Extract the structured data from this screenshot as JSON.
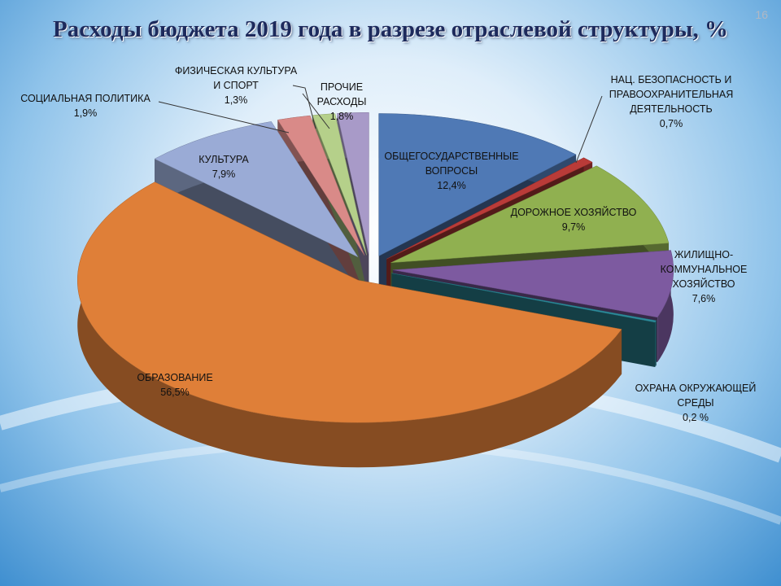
{
  "chart_data": {
    "type": "pie",
    "title": "Расходы бюджета 2019 года в разрезе отраслевой структуры, %",
    "slide_number": "16",
    "categories": [
      "ОБЩЕГОСУДАРСТВЕННЫЕ ВОПРОСЫ",
      "НАЦ. БЕЗОПАСНОСТЬ И ПРАВООХРАНИТЕЛЬНАЯ ДЕЯТЕЛЬНОСТЬ",
      "ДОРОЖНОЕ ХОЗЯЙСТВО",
      "ЖИЛИЩНО-КОММУНАЛЬНОЕ ХОЗЯЙСТВО",
      "ОХРАНА ОКРУЖАЮЩЕЙ СРЕДЫ",
      "ОБРАЗОВАНИЕ",
      "КУЛЬТУРА",
      "СОЦИАЛЬНАЯ ПОЛИТИКА",
      "ФИЗИЧЕСКАЯ КУЛЬТУРА И СПОРТ",
      "ПРОЧИЕ РАСХОДЫ"
    ],
    "values": [
      12.4,
      0.7,
      9.7,
      7.6,
      0.2,
      56.5,
      7.9,
      1.9,
      1.3,
      1.8
    ],
    "value_labels": [
      "12,4%",
      "0,7%",
      "9,7%",
      "7,6%",
      "0,2 %",
      "56,5%",
      "7,9%",
      "1,9%",
      "1,3%",
      "1,8%"
    ],
    "colors": [
      "#4f79b5",
      "#b93b38",
      "#90b050",
      "#7d5aa0",
      "#2c8a9a",
      "#df7f38",
      "#9aabd6",
      "#d98a88",
      "#b5d08a",
      "#a89ac8"
    ]
  }
}
